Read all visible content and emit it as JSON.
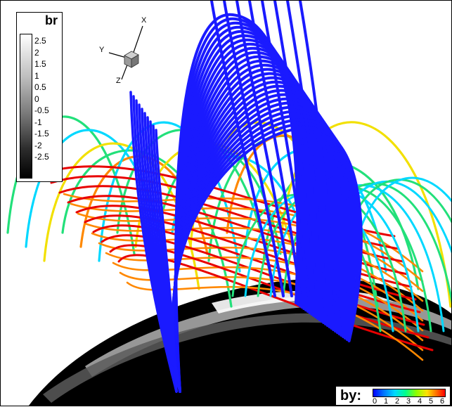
{
  "legend_br": {
    "title": "br",
    "ticks": [
      "2.5",
      "2",
      "1.5",
      "1",
      "0.5",
      "0",
      "-0.5",
      "-1",
      "-1.5",
      "-2",
      "-2.5"
    ]
  },
  "legend_by": {
    "label": "by:",
    "ticks": [
      "0",
      "1",
      "2",
      "3",
      "4",
      "5",
      "6"
    ]
  },
  "axes": {
    "x": "X",
    "y": "Y",
    "z": "Z"
  },
  "colors": {
    "field_blue": "#1a1aff",
    "cyan": "#00d8ff",
    "green": "#22e07a",
    "yellow": "#f2e000",
    "orange": "#ff8800",
    "red": "#e80000"
  }
}
